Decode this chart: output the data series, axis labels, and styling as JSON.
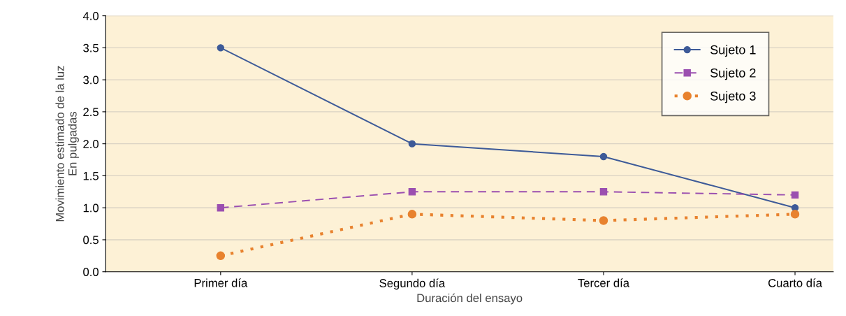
{
  "chart_data": {
    "type": "line",
    "xlabel": "Duración del ensayo",
    "ylabel": "Movimiento estimado de la luz\nEn pulgadas",
    "categories": [
      "Primer día",
      "Segundo día",
      "Tercer día",
      "Cuarto día"
    ],
    "series": [
      {
        "name": "Sujeto 1",
        "color": "#3d5a98",
        "values": [
          3.5,
          2.0,
          1.8,
          1.0
        ],
        "marker": "circle",
        "line_style": "solid"
      },
      {
        "name": "Sujeto 2",
        "color": "#9b4fb0",
        "values": [
          1.0,
          1.25,
          1.25,
          1.2
        ],
        "marker": "square",
        "line_style": "dashed"
      },
      {
        "name": "Sujeto 3",
        "color": "#e8822e",
        "values": [
          0.25,
          0.9,
          0.8,
          0.9
        ],
        "marker": "circle",
        "line_style": "dotted"
      }
    ],
    "ylim": [
      0,
      4
    ],
    "yticks": [
      {
        "value": 0,
        "label": "0.0"
      },
      0.5,
      {
        "value": 1,
        "label": "1.0"
      },
      1.5,
      {
        "value": 2,
        "label": "2.0"
      },
      2.5,
      {
        "value": 3,
        "label": "3.0"
      },
      3.5,
      {
        "value": 4,
        "label": "4.0"
      }
    ],
    "grid": "y",
    "legend": "top right"
  }
}
